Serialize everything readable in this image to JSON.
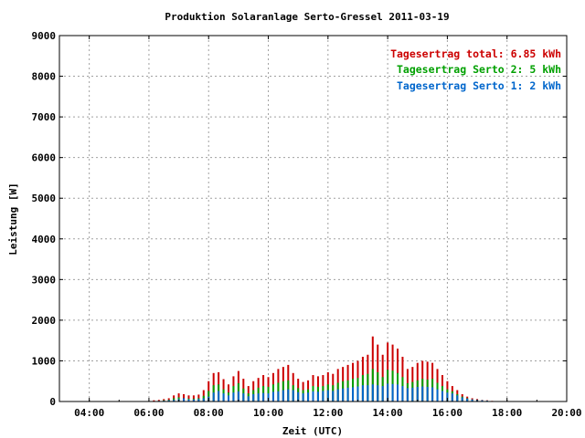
{
  "chart_data": {
    "type": "bar",
    "title": "Produktion Solaranlage Serto-Gressel 2011-03-19",
    "xlabel": "Zeit (UTC)",
    "ylabel": "Leistung [W]",
    "xlim": [
      "03:00",
      "20:00"
    ],
    "ylim": [
      0,
      9000
    ],
    "x_ticks": [
      "04:00",
      "06:00",
      "08:00",
      "10:00",
      "12:00",
      "14:00",
      "16:00",
      "18:00",
      "20:00"
    ],
    "y_ticks": [
      "0",
      "1000",
      "2000",
      "3000",
      "4000",
      "5000",
      "6000",
      "7000",
      "8000",
      "9000"
    ],
    "grid": true,
    "stacked": true,
    "legend": {
      "placement": "top-right",
      "entries": [
        {
          "text": "Tagesertrag total: 6.85 kWh",
          "color": "#cc0000"
        },
        {
          "text": "Tagesertrag Serto 2: 5 kWh",
          "color": "#00a000"
        },
        {
          "text": "Tagesertrag Serto 1: 2 kWh",
          "color": "#0066cc"
        }
      ]
    },
    "x": [
      "06:10",
      "06:20",
      "06:30",
      "06:40",
      "06:50",
      "07:00",
      "07:10",
      "07:20",
      "07:30",
      "07:40",
      "07:50",
      "08:00",
      "08:10",
      "08:20",
      "08:30",
      "08:40",
      "08:50",
      "09:00",
      "09:10",
      "09:20",
      "09:30",
      "09:40",
      "09:50",
      "10:00",
      "10:10",
      "10:20",
      "10:30",
      "10:40",
      "10:50",
      "11:00",
      "11:10",
      "11:20",
      "11:30",
      "11:40",
      "11:50",
      "12:00",
      "12:10",
      "12:20",
      "12:30",
      "12:40",
      "12:50",
      "13:00",
      "13:10",
      "13:20",
      "13:30",
      "13:40",
      "13:50",
      "14:00",
      "14:10",
      "14:20",
      "14:30",
      "14:40",
      "14:50",
      "15:00",
      "15:10",
      "15:20",
      "15:30",
      "15:40",
      "15:50",
      "16:00",
      "16:10",
      "16:20",
      "16:30",
      "16:40",
      "16:50",
      "17:00",
      "17:10",
      "17:20",
      "17:30",
      "17:40"
    ],
    "series": [
      {
        "name": "Serto 1",
        "color": "#0066cc",
        "values": [
          10,
          15,
          20,
          30,
          40,
          60,
          80,
          50,
          50,
          60,
          80,
          120,
          220,
          260,
          200,
          150,
          220,
          250,
          200,
          130,
          180,
          200,
          210,
          200,
          240,
          250,
          280,
          300,
          280,
          230,
          200,
          220,
          250,
          240,
          260,
          280,
          260,
          300,
          320,
          340,
          350,
          370,
          400,
          400,
          420,
          400,
          380,
          440,
          430,
          420,
          380,
          330,
          340,
          360,
          370,
          360,
          350,
          300,
          260,
          220,
          200,
          150,
          100,
          70,
          50,
          40,
          30,
          20,
          10,
          5
        ]
      },
      {
        "name": "Serto 2",
        "color": "#00a000",
        "values": [
          10,
          15,
          30,
          40,
          80,
          100,
          80,
          70,
          70,
          80,
          140,
          260,
          400,
          420,
          300,
          220,
          380,
          450,
          320,
          200,
          280,
          340,
          380,
          360,
          420,
          460,
          500,
          520,
          400,
          330,
          280,
          300,
          380,
          360,
          380,
          420,
          400,
          460,
          500,
          520,
          560,
          580,
          650,
          680,
          800,
          720,
          600,
          780,
          760,
          700,
          600,
          450,
          480,
          520,
          560,
          540,
          560,
          460,
          380,
          300,
          250,
          180,
          120,
          80,
          50,
          40,
          30,
          20,
          10,
          5
        ]
      },
      {
        "name": "total",
        "color": "#cc0000",
        "values": [
          30,
          40,
          60,
          80,
          150,
          200,
          180,
          150,
          150,
          170,
          280,
          500,
          700,
          720,
          550,
          420,
          620,
          750,
          560,
          380,
          500,
          580,
          650,
          600,
          700,
          800,
          850,
          900,
          700,
          560,
          480,
          520,
          650,
          620,
          650,
          720,
          680,
          800,
          850,
          900,
          950,
          1000,
          1100,
          1150,
          1600,
          1400,
          1150,
          1450,
          1400,
          1300,
          1100,
          800,
          850,
          950,
          1000,
          980,
          950,
          800,
          650,
          500,
          380,
          280,
          180,
          120,
          80,
          60,
          40,
          30,
          15,
          8
        ]
      }
    ]
  }
}
